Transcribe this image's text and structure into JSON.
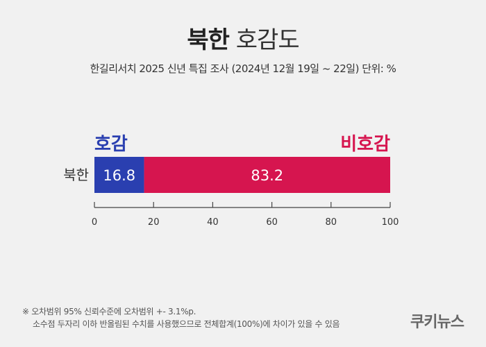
{
  "header": {
    "title_bold": "북한",
    "title_light": "호감도",
    "subtitle": "한길리서치 2025 신년 특집 조사 (2024년 12월 19일 ~ 22일) 단위: %"
  },
  "chart_data": {
    "type": "bar",
    "orientation": "horizontal-stacked",
    "categories": [
      "북한"
    ],
    "series": [
      {
        "name": "호감",
        "values": [
          16.8
        ],
        "color": "#2a3fb0"
      },
      {
        "name": "비호감",
        "values": [
          83.2
        ],
        "color": "#d6154f"
      }
    ],
    "xlim": [
      0,
      100
    ],
    "xticks": [
      0,
      20,
      40,
      60,
      80,
      100
    ],
    "legend": "above-bar-ends",
    "grid": false
  },
  "footnote": {
    "line1": "※ 오차범위 95% 신뢰수준에 오차범위 +- 3.1%p.",
    "line2": "소수점 두자리 이하 반올림된 수치를 사용했으므로 전체합계(100%)에 차이가 있을 수 있음"
  },
  "brand": "쿠키뉴스"
}
